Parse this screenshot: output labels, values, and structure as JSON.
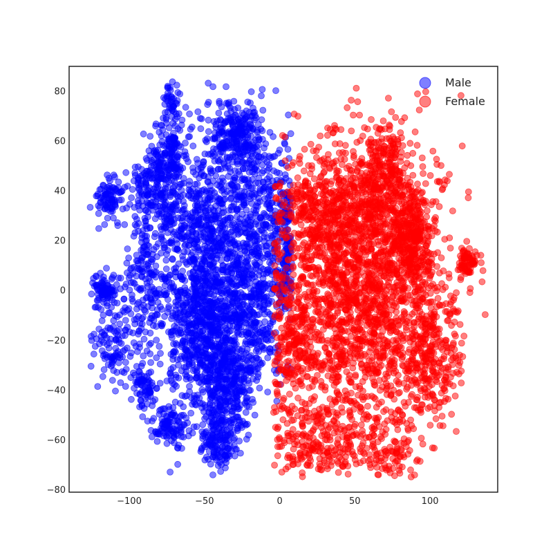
{
  "chart_data": {
    "type": "scatter",
    "title": "",
    "xlabel": "",
    "ylabel": "",
    "xlim": [
      -140,
      145
    ],
    "ylim": [
      -81,
      90
    ],
    "xticks": [
      -100,
      -50,
      0,
      50,
      100
    ],
    "yticks": [
      -80,
      -60,
      -40,
      -20,
      0,
      20,
      40,
      60,
      80
    ],
    "xtick_labels": [
      "−100",
      "−50",
      "0",
      "50",
      "100"
    ],
    "ytick_labels": [
      "−80",
      "−60",
      "−40",
      "−20",
      "0",
      "20",
      "40",
      "60",
      "80"
    ],
    "grid": false,
    "legend_position": "top-right",
    "marker_alpha": 0.5,
    "series": [
      {
        "name": "Male",
        "color": "#0000ff",
        "clusters": [
          {
            "cx": -47,
            "cy": 20,
            "sx": 18,
            "sy": 22,
            "n": 900
          },
          {
            "cx": -50,
            "cy": -15,
            "sx": 14,
            "sy": 14,
            "n": 600
          },
          {
            "cx": -30,
            "cy": 62,
            "sx": 10,
            "sy": 8,
            "n": 260
          },
          {
            "cx": -75,
            "cy": 55,
            "sx": 7,
            "sy": 7,
            "n": 140
          },
          {
            "cx": -82,
            "cy": 40,
            "sx": 10,
            "sy": 8,
            "n": 180
          },
          {
            "cx": -113,
            "cy": 37,
            "sx": 4,
            "sy": 4,
            "n": 90
          },
          {
            "cx": -117,
            "cy": 0,
            "sx": 4,
            "sy": 4,
            "n": 90
          },
          {
            "cx": -110,
            "cy": -20,
            "sx": 7,
            "sy": 8,
            "n": 110
          },
          {
            "cx": -88,
            "cy": 5,
            "sx": 8,
            "sy": 14,
            "n": 180
          },
          {
            "cx": -90,
            "cy": -38,
            "sx": 4,
            "sy": 4,
            "n": 70
          },
          {
            "cx": -72,
            "cy": -55,
            "sx": 7,
            "sy": 4,
            "n": 110
          },
          {
            "cx": -40,
            "cy": -60,
            "sx": 7,
            "sy": 6,
            "n": 170
          },
          {
            "cx": -35,
            "cy": -38,
            "sx": 9,
            "sy": 8,
            "n": 320
          },
          {
            "cx": -15,
            "cy": -10,
            "sx": 10,
            "sy": 14,
            "n": 240
          },
          {
            "cx": -72,
            "cy": 76,
            "sx": 3,
            "sy": 3,
            "n": 40
          },
          {
            "cx": -10,
            "cy": 30,
            "sx": 12,
            "sy": 18,
            "n": 300
          },
          {
            "cx": 3,
            "cy": 15,
            "sx": 6,
            "sy": 14,
            "n": 130
          }
        ]
      },
      {
        "name": "Female",
        "color": "#ff0000",
        "clusters": [
          {
            "cx": 55,
            "cy": 0,
            "sx": 28,
            "sy": 30,
            "n": 2000
          },
          {
            "cx": 30,
            "cy": 30,
            "sx": 12,
            "sy": 12,
            "n": 350
          },
          {
            "cx": 65,
            "cy": 40,
            "sx": 10,
            "sy": 10,
            "n": 250
          },
          {
            "cx": 88,
            "cy": 20,
            "sx": 7,
            "sy": 10,
            "n": 300
          },
          {
            "cx": 125,
            "cy": 11,
            "sx": 3,
            "sy": 3,
            "n": 70
          },
          {
            "cx": 30,
            "cy": -60,
            "sx": 16,
            "sy": 8,
            "n": 260
          },
          {
            "cx": 75,
            "cy": -65,
            "sx": 8,
            "sy": 5,
            "n": 70
          },
          {
            "cx": 10,
            "cy": -20,
            "sx": 6,
            "sy": 12,
            "n": 160
          },
          {
            "cx": 70,
            "cy": 55,
            "sx": 6,
            "sy": 5,
            "n": 60
          },
          {
            "cx": 100,
            "cy": -25,
            "sx": 10,
            "sy": 12,
            "n": 260
          }
        ]
      }
    ]
  }
}
